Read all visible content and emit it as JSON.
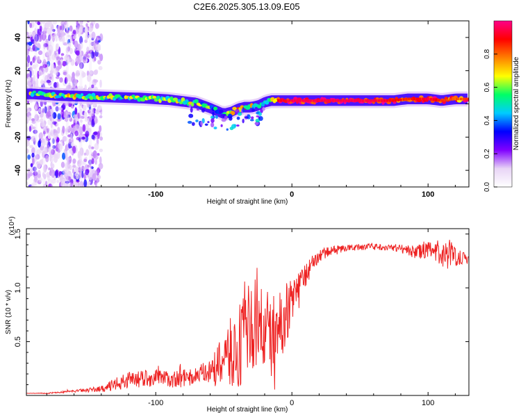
{
  "chart_data": [
    {
      "type": "heatmap",
      "title": "C2E6.2025.305.13.09.E05",
      "xlabel": "Height of straight line (km)",
      "ylabel": "Frequency (Hz)",
      "xlim": [
        -195,
        130
      ],
      "ylim": [
        -50,
        50
      ],
      "x_ticks": [
        -100,
        0,
        100
      ],
      "y_ticks": [
        40,
        20,
        0,
        -20,
        -40
      ],
      "colorbar": {
        "label": "Normalized spectral amplitude",
        "range": [
          0,
          1
        ],
        "ticks": [
          0.0,
          0.2,
          0.4,
          0.6,
          0.8
        ],
        "colormap": [
          "#ffffff",
          "#e8d4f6",
          "#8000ff",
          "#0000ff",
          "#00ccff",
          "#00ff66",
          "#ffff00",
          "#ff8000",
          "#ff0000",
          "#ff0088"
        ]
      },
      "ridge": {
        "x": [
          -190,
          -170,
          -150,
          -130,
          -110,
          -90,
          -80,
          -70,
          -60,
          -50,
          -45,
          -40,
          -35,
          -30,
          -25,
          -20,
          -15,
          -10,
          0,
          20,
          40,
          60,
          75,
          85,
          100,
          110,
          120,
          130
        ],
        "freq": [
          6,
          5,
          4.5,
          4,
          3.5,
          2.5,
          1.5,
          0.5,
          -2.5,
          -6,
          -5,
          -3,
          -2,
          -2,
          -1,
          1,
          2,
          2,
          2,
          2,
          2,
          2,
          2,
          3,
          3,
          2,
          3,
          3
        ],
        "amplitude": [
          0.55,
          0.6,
          0.6,
          0.55,
          0.5,
          0.55,
          0.6,
          0.55,
          0.5,
          0.45,
          0.55,
          0.8,
          0.7,
          0.6,
          0.5,
          0.55,
          0.6,
          0.9,
          0.95,
          0.95,
          0.95,
          0.95,
          0.9,
          0.85,
          0.95,
          0.85,
          0.8,
          0.85
        ]
      },
      "background_region": {
        "x_range": [
          -195,
          -140
        ],
        "amplitude": 0.15
      }
    },
    {
      "type": "line",
      "xlabel": "Height of straight line (km)",
      "ylabel": "SNR (10 * v/v)",
      "y_multiplier": "(x10⁴)",
      "xlim": [
        -195,
        130
      ],
      "ylim": [
        0,
        1.55
      ],
      "x_ticks": [
        -100,
        0,
        100
      ],
      "y_ticks": [
        1.5,
        1.0,
        0.5
      ],
      "line_color": "#ee2222",
      "series": [
        {
          "name": "SNR",
          "x": [
            -195,
            -180,
            -160,
            -140,
            -130,
            -120,
            -110,
            -100,
            -90,
            -80,
            -70,
            -60,
            -55,
            -50,
            -45,
            -40,
            -35,
            -30,
            -25,
            -20,
            -15,
            -10,
            -5,
            0,
            5,
            10,
            15,
            20,
            30,
            40,
            50,
            60,
            70,
            80,
            90,
            100,
            110,
            115,
            120,
            130
          ],
          "y": [
            0.02,
            0.02,
            0.04,
            0.06,
            0.1,
            0.14,
            0.16,
            0.16,
            0.15,
            0.16,
            0.18,
            0.22,
            0.26,
            0.32,
            0.38,
            0.45,
            0.55,
            0.65,
            0.62,
            0.6,
            0.55,
            0.6,
            0.75,
            0.88,
            1.0,
            1.12,
            1.22,
            1.3,
            1.35,
            1.37,
            1.38,
            1.38,
            1.38,
            1.37,
            1.33,
            1.35,
            1.3,
            1.32,
            1.3,
            1.27
          ],
          "noise": [
            0,
            0.005,
            0.01,
            0.03,
            0.06,
            0.08,
            0.08,
            0.08,
            0.08,
            0.08,
            0.09,
            0.12,
            0.18,
            0.25,
            0.35,
            0.4,
            0.45,
            0.45,
            0.45,
            0.4,
            0.4,
            0.35,
            0.3,
            0.22,
            0.15,
            0.12,
            0.08,
            0.06,
            0.04,
            0.03,
            0.03,
            0.03,
            0.03,
            0.04,
            0.06,
            0.08,
            0.1,
            0.15,
            0.1,
            0.04
          ]
        }
      ]
    }
  ]
}
